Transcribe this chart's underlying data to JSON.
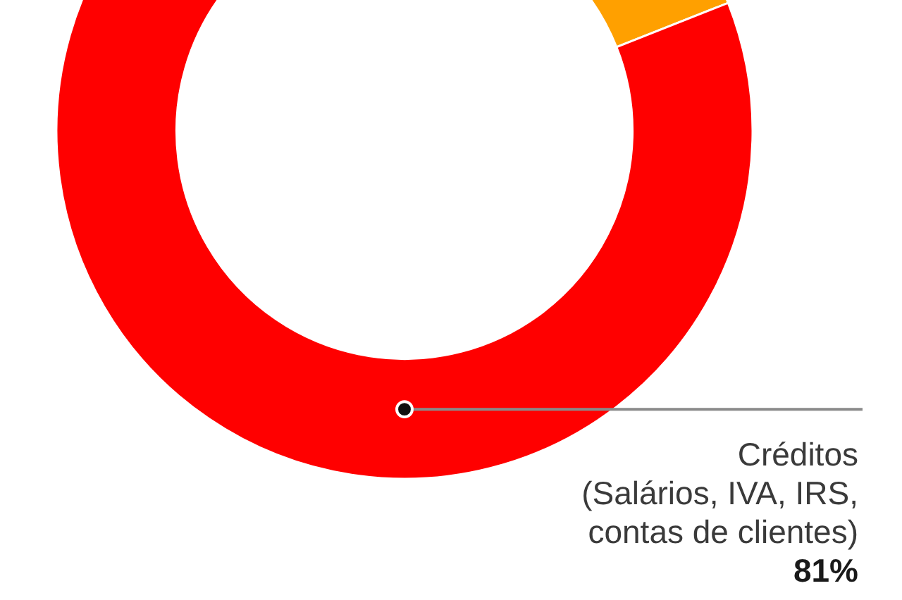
{
  "chart_data": {
    "type": "donut",
    "categories": [
      null,
      "Créditos (Salários, IVA, IRS, contas de clientes)"
    ],
    "values": [
      19,
      81
    ],
    "colors": [
      "#ffa000",
      "#ff0000"
    ],
    "value_labels": [
      null,
      "81%"
    ]
  }
}
